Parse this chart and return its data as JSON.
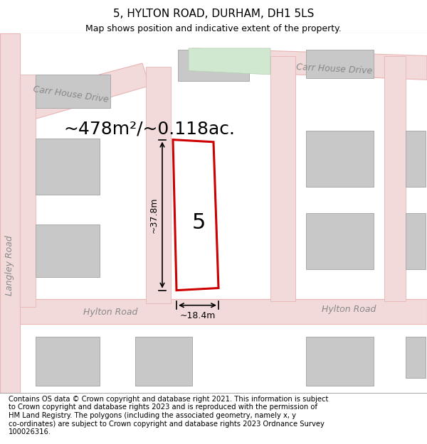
{
  "title": "5, HYLTON ROAD, DURHAM, DH1 5LS",
  "subtitle": "Map shows position and indicative extent of the property.",
  "area_text": "~478m²/~0.118ac.",
  "dim_width": "~18.4m",
  "dim_height": "~37.8m",
  "plot_number": "5",
  "road_label_bottom": "Hylton Road",
  "road_label_right": "Hylton Road",
  "road_label_top_left": "Carr House Drive",
  "road_label_top_right": "Carr House Drive",
  "road_label_left": "Langley Road",
  "footer_wrapped": "Contains OS data © Crown copyright and database right 2021. This information is subject\nto Crown copyright and database rights 2023 and is reproduced with the permission of\nHM Land Registry. The polygons (including the associated geometry, namely x, y\nco-ordinates) are subject to Crown copyright and database rights 2023 Ordnance Survey\n100026316.",
  "map_bg": "#f0eeee",
  "road_light": "#f2dada",
  "road_color": "#e8b4b4",
  "plot_outline_color": "#cc0000",
  "building_color": "#c8c8c8",
  "building_edge": "#aaaaaa",
  "title_fontsize": 11,
  "subtitle_fontsize": 9,
  "area_fontsize": 18,
  "footer_fontsize": 7.2
}
